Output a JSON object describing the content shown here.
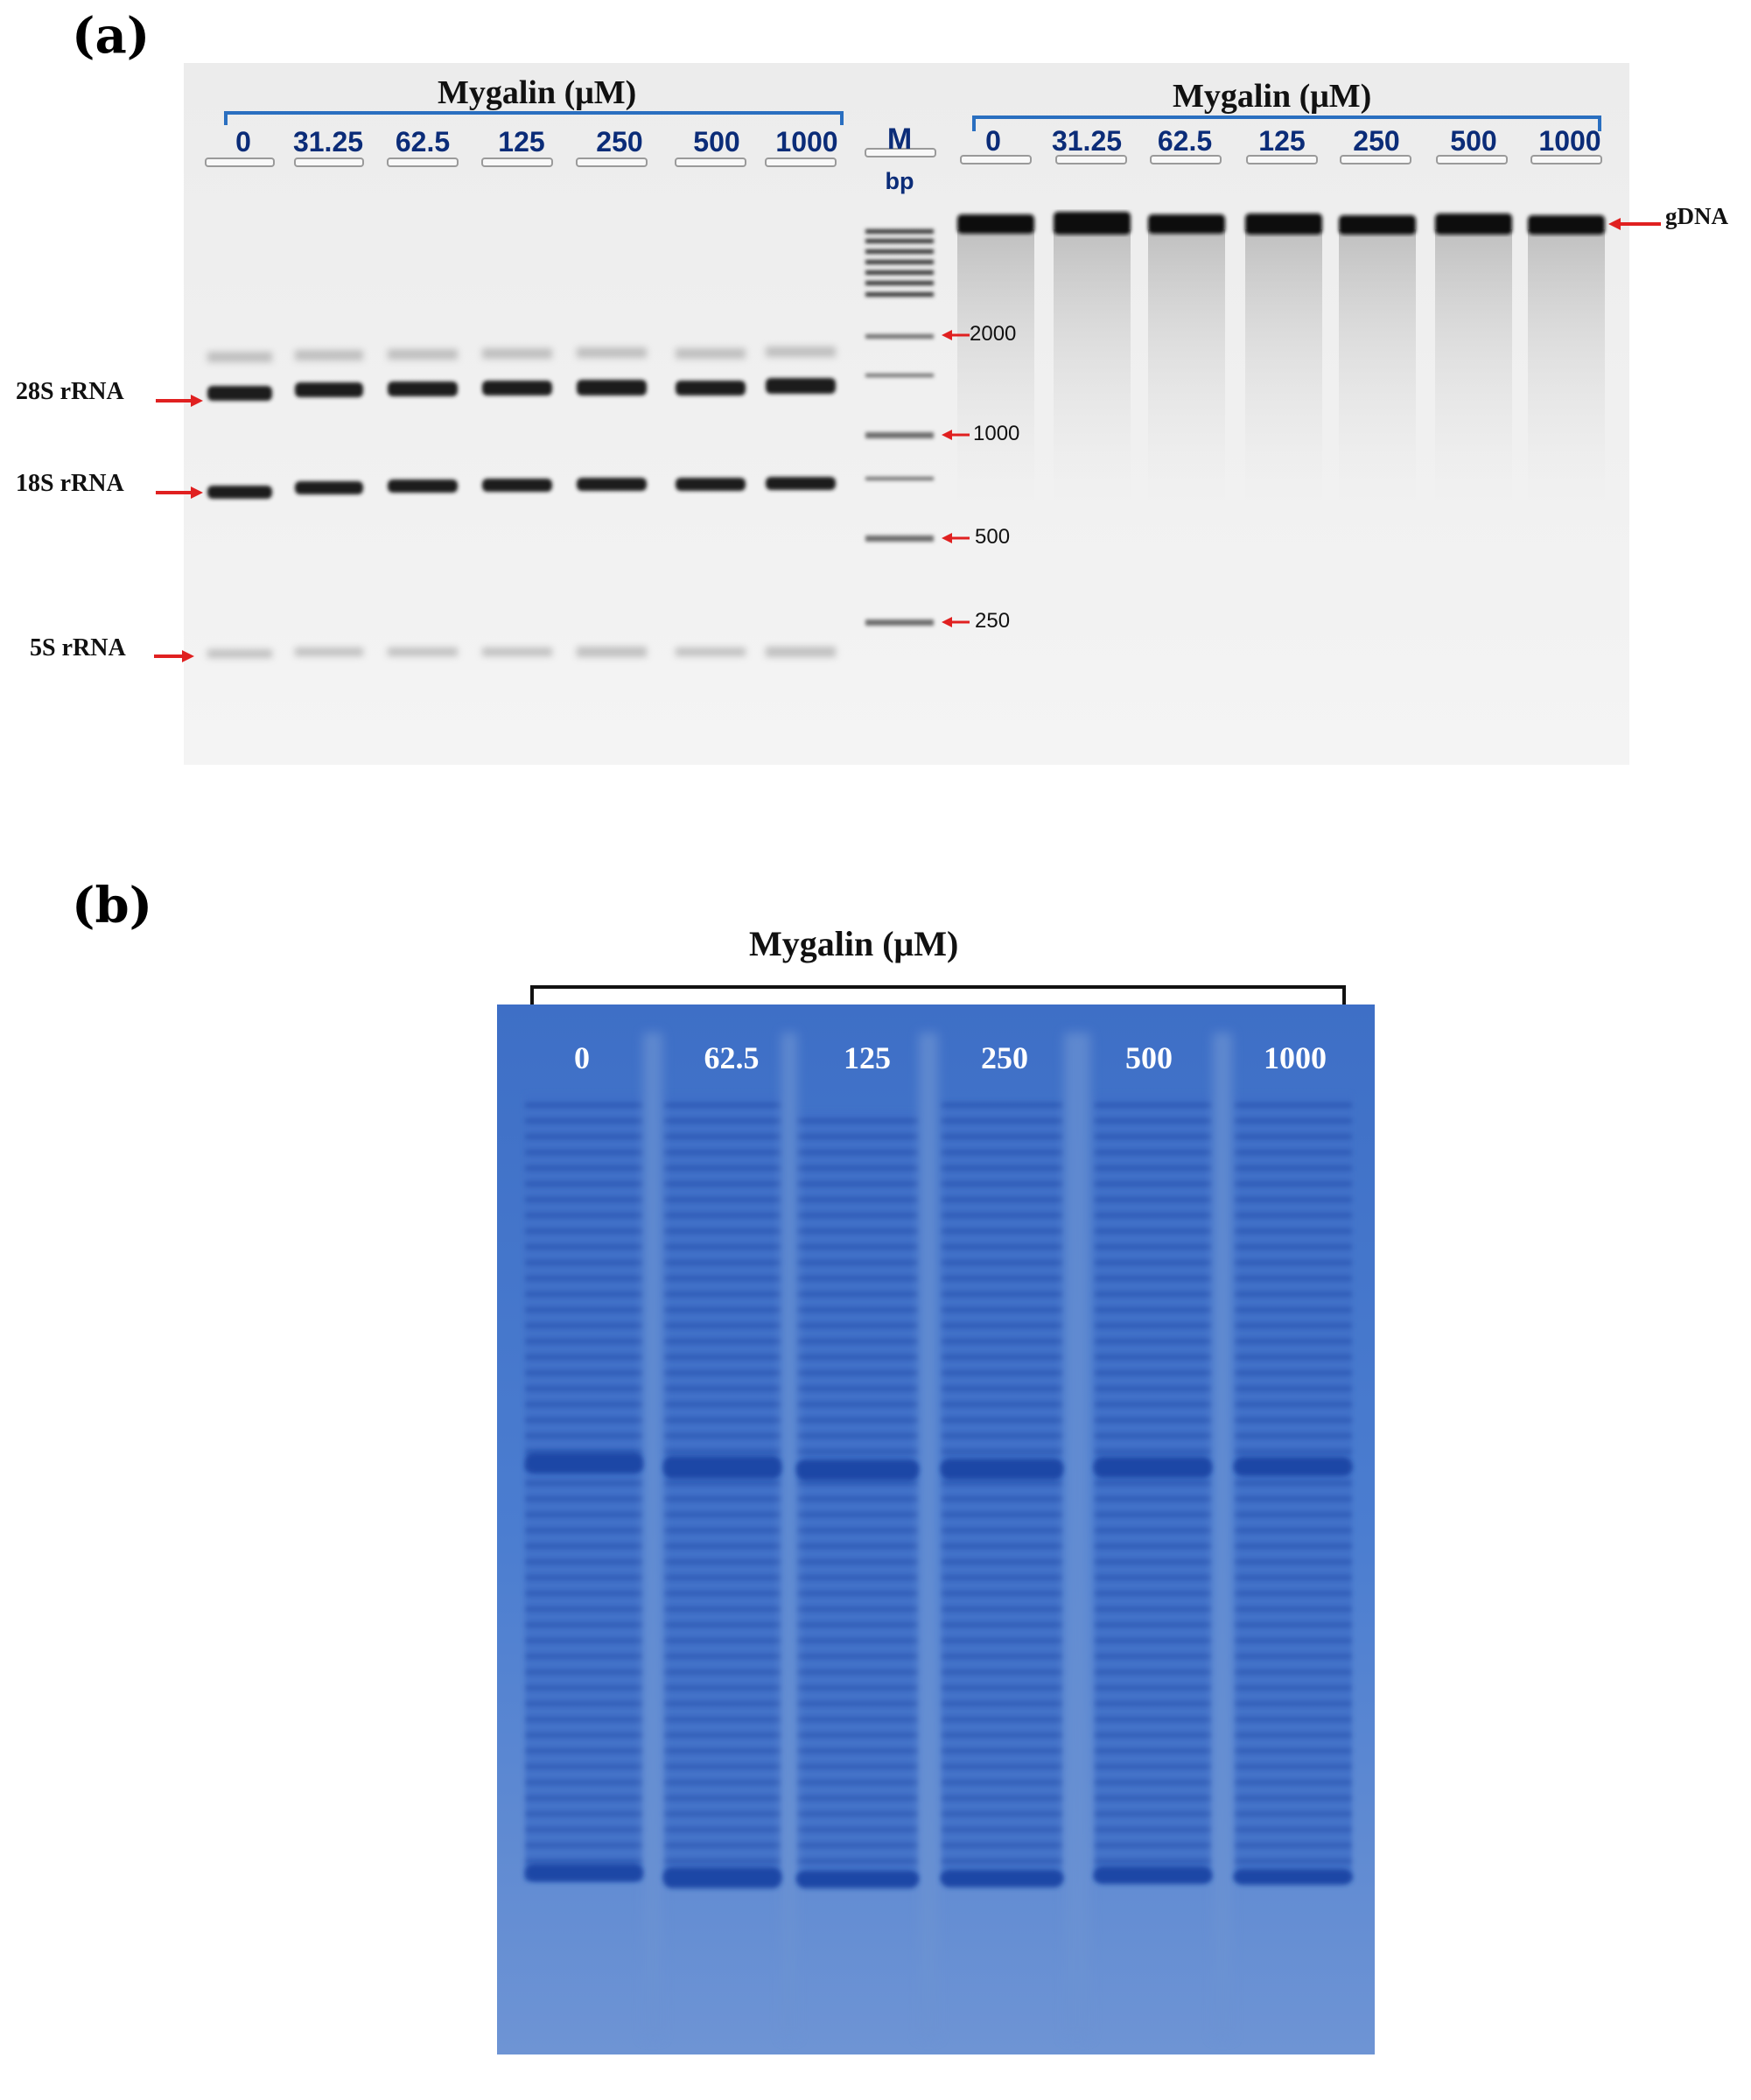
{
  "panel_a": {
    "label": "(a)",
    "left_title": "Mygalin (μM)",
    "right_title": "Mygalin (μM)",
    "left_lanes": [
      "0",
      "31.25",
      "62.5",
      "125",
      "250",
      "500",
      "1000"
    ],
    "right_lanes": [
      "0",
      "31.25",
      "62.5",
      "125",
      "250",
      "500",
      "1000"
    ],
    "marker_label": "M",
    "marker_unit": "bp",
    "ladder_labels": [
      "2000",
      "1000",
      "500",
      "250"
    ],
    "band_labels": [
      "28S rRNA",
      "18S rRNA",
      "5S rRNA"
    ],
    "gdna_label": "gDNA",
    "colors": {
      "bracket": "#2a6fc0",
      "arrow": "#e02020",
      "lane_text": "#0b2c78"
    }
  },
  "panel_b": {
    "label": "(b)",
    "title": "Mygalin (μM)",
    "lanes": [
      "0",
      "62.5",
      "125",
      "250",
      "500",
      "1000"
    ],
    "colors": {
      "gel": "#4a7fd0",
      "band": "#1f4fb0"
    }
  }
}
